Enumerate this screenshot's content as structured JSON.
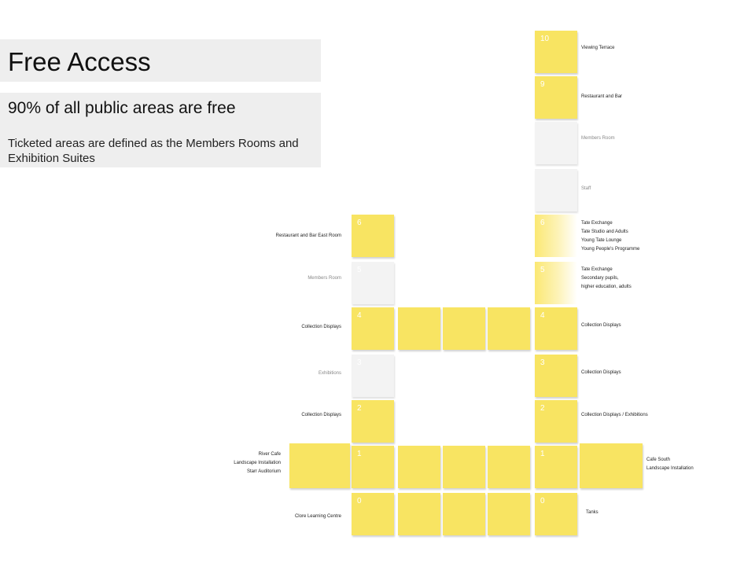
{
  "header": {
    "title": "Free Access",
    "subtitle": "90% of all public areas are free",
    "description": "Ticketed areas are defined as the Members Rooms and Exhibition Suites"
  },
  "colors": {
    "free": "#f8e462",
    "ticketed": "#f3f3f3"
  },
  "left_tower": {
    "levels": [
      {
        "num": "0",
        "label": "Clore Learning Centre",
        "access": "free"
      },
      {
        "num": "1",
        "label": "River Cafe\nLandscape Installation\nStarr Auditorium",
        "access": "free"
      },
      {
        "num": "2",
        "label": "Collection Displays",
        "access": "free"
      },
      {
        "num": "3",
        "label": "Exhibitions",
        "access": "ticketed"
      },
      {
        "num": "4",
        "label": "Collection Displays",
        "access": "free"
      },
      {
        "num": "5",
        "label": "Members Room",
        "access": "ticketed"
      },
      {
        "num": "6",
        "label": "Restaurant and Bar East Room",
        "access": "free"
      }
    ]
  },
  "right_tower": {
    "levels": [
      {
        "num": "0",
        "label": "Tanks",
        "access": "free"
      },
      {
        "num": "1",
        "label": "Cafe South\nLandscape Installation",
        "access": "free"
      },
      {
        "num": "2",
        "label": "Collection Displays / Exhibitions",
        "access": "free"
      },
      {
        "num": "3",
        "label": "Collection Displays",
        "access": "free"
      },
      {
        "num": "4",
        "label": "Collection Displays",
        "access": "free"
      },
      {
        "num": "5",
        "label": "Tate Exchange\nSecondary pupils,\nhigher education, adults",
        "access": "free"
      },
      {
        "num": "6",
        "label": "Tate Exchange\nTate Studio and Adults\nYoung Tate Lounge\nYoung People's Programme",
        "access": "free"
      },
      {
        "num": "7",
        "label": "Staff",
        "access": "ticketed"
      },
      {
        "num": "8",
        "label": "Members Room",
        "access": "ticketed"
      },
      {
        "num": "9",
        "label": "Restaurant and Bar",
        "access": "free"
      },
      {
        "num": "10",
        "label": "Viewing Terrace",
        "access": "free"
      }
    ]
  }
}
